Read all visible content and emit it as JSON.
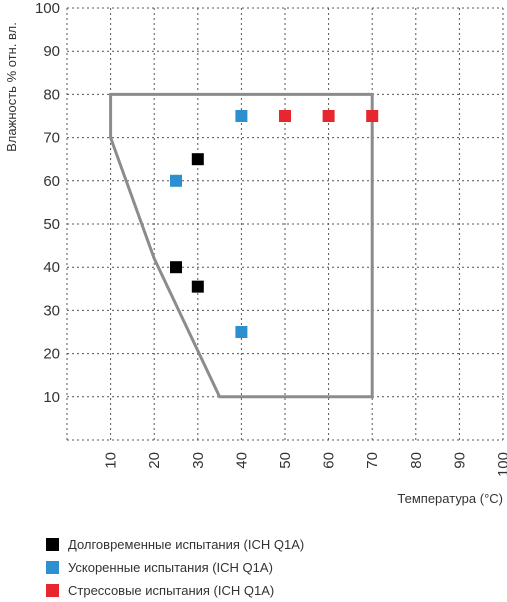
{
  "chart_data": {
    "type": "scatter",
    "xlabel": "Температура (°C)",
    "ylabel": "Влажность % отн. вл.",
    "xlim": [
      0,
      100
    ],
    "ylim": [
      0,
      100
    ],
    "x_ticks": [
      "10",
      "20",
      "30",
      "40",
      "50",
      "60",
      "70",
      "80",
      "90",
      "100"
    ],
    "y_ticks": [
      "10",
      "20",
      "30",
      "40",
      "50",
      "60",
      "70",
      "80",
      "90",
      "100"
    ],
    "grid": true,
    "legend_position": "bottom",
    "region": [
      [
        10,
        80
      ],
      [
        70,
        80
      ],
      [
        70,
        10
      ],
      [
        35,
        10
      ],
      [
        20,
        42
      ],
      [
        10,
        70
      ]
    ],
    "series": [
      {
        "name": "Долговременные испытания (ICH Q1A)",
        "color": "#000000",
        "points": [
          [
            30,
            65
          ],
          [
            25,
            40
          ],
          [
            30,
            35.5
          ]
        ]
      },
      {
        "name": "Ускоренные испытания (ICH Q1A)",
        "color": "#2b8fd0",
        "points": [
          [
            40,
            75
          ],
          [
            25,
            60
          ],
          [
            40,
            25
          ]
        ]
      },
      {
        "name": "Стрессовые испытания (ICH Q1A)",
        "color": "#e8262d",
        "points": [
          [
            50,
            75
          ],
          [
            60,
            75
          ],
          [
            70,
            75
          ]
        ]
      }
    ]
  }
}
